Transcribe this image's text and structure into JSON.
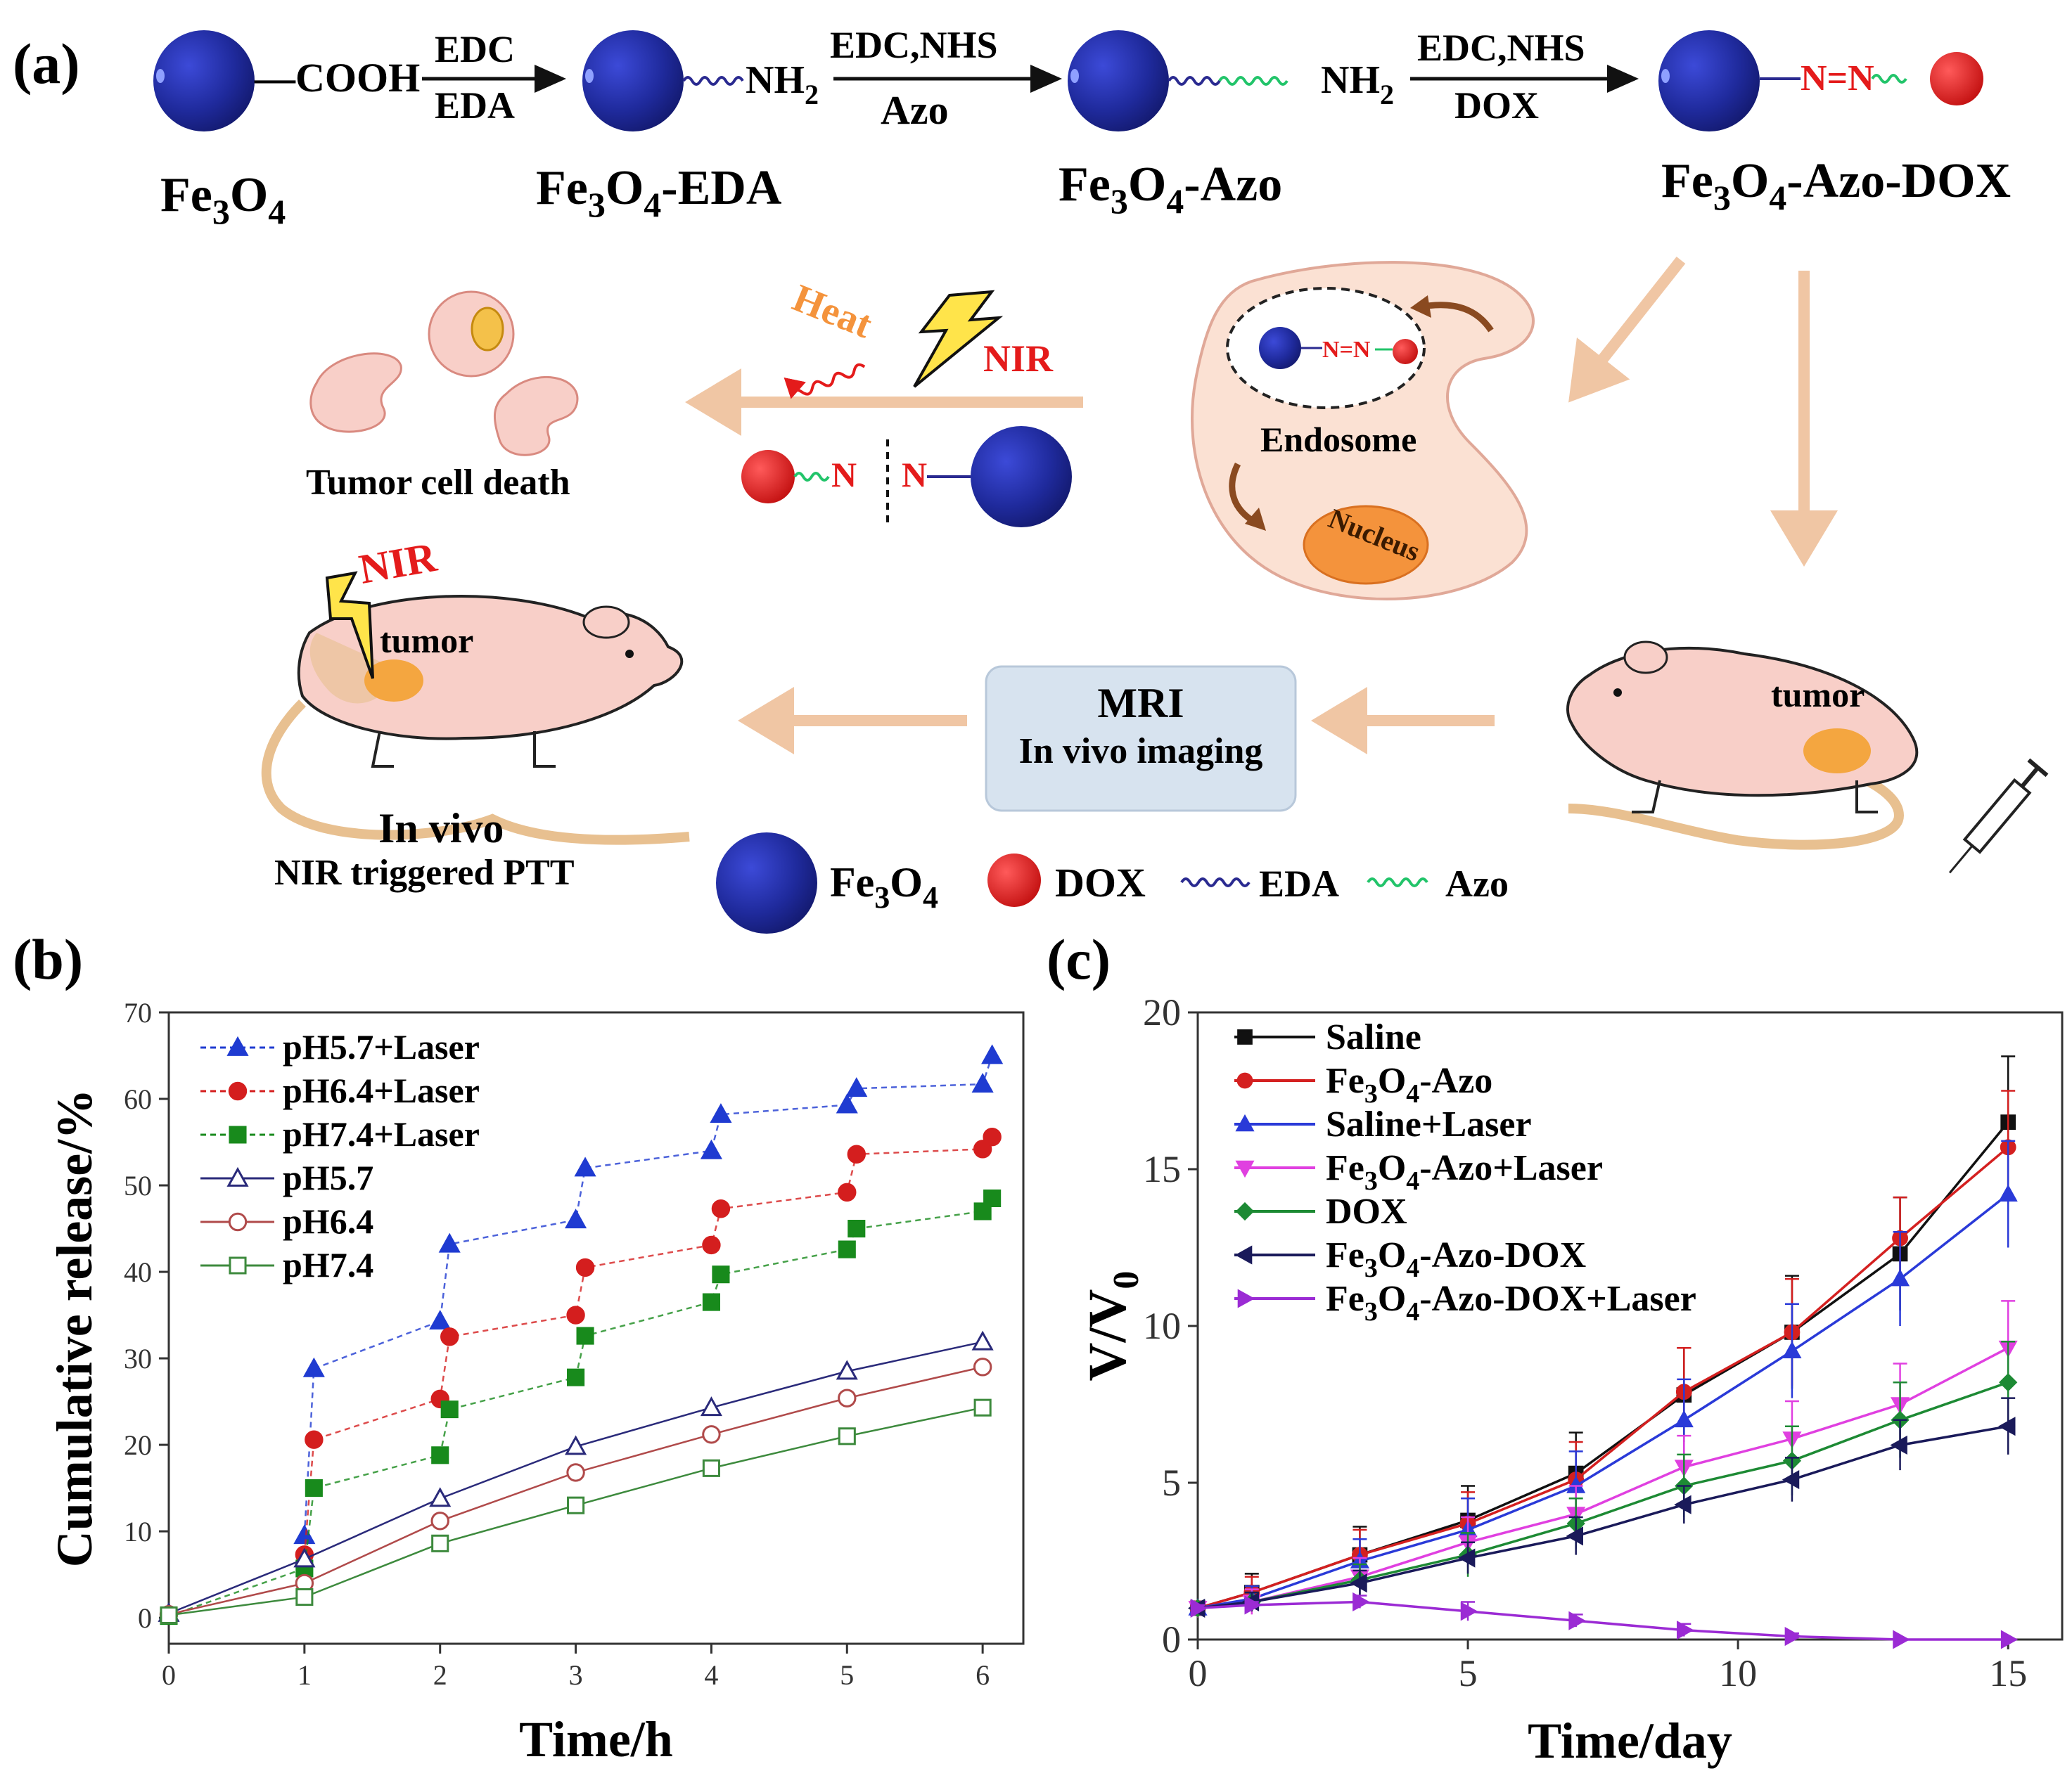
{
  "panel_labels": {
    "a": "(a)",
    "b": "(b)",
    "c": "(c)"
  },
  "colors": {
    "fe3o4": "#1f2a9c",
    "dox": "#e01414",
    "eda_wave": "#2a2a90",
    "azo_wave": "#22c46a",
    "arrow": "#f0c6a4",
    "cell": "#fbe1d3",
    "nucleus": "#f4933c",
    "mouse": "#f8cfc8",
    "tumor": "#f4a640",
    "mri_box": "#d7e3ef",
    "heat": "#f4933c",
    "nir_red": "#e41b1b"
  },
  "scheme": {
    "steps": [
      {
        "label": "Fe3O4",
        "main": "Fe",
        "sub1": "3",
        "mid": "O",
        "sub2": "4",
        "tail": "",
        "group": "—COOH"
      },
      {
        "label": "Fe3O4-EDA",
        "main": "Fe",
        "sub1": "3",
        "mid": "O",
        "sub2": "4",
        "tail": "-EDA",
        "group": "NH",
        "group_sub": "2"
      },
      {
        "label": "Fe3O4-Azo",
        "main": "Fe",
        "sub1": "3",
        "mid": "O",
        "sub2": "4",
        "tail": "-Azo",
        "group": "NH",
        "group_sub": "2"
      },
      {
        "label": "Fe3O4-Azo-DOX",
        "main": "Fe",
        "sub1": "3",
        "mid": "O",
        "sub2": "4",
        "tail": "-Azo-DOX",
        "group": "N=N"
      }
    ],
    "reactions": [
      {
        "top": "EDC",
        "bottom": "EDA"
      },
      {
        "top": "EDC,NHS",
        "bottom": "Azo"
      },
      {
        "top": "EDC,NHS",
        "bottom": "DOX"
      }
    ],
    "cell": {
      "endosome": "Endosome",
      "nucleus": "Nucleus",
      "bond": "N=N"
    },
    "heat": "Heat",
    "nir": "NIR",
    "cleaved_n_left": "N",
    "cleaved_n_right": "N",
    "tumor_death": "Tumor cell death",
    "mouse_left": {
      "nir": "NIR",
      "tumor": "tumor",
      "line1": "In vivo",
      "line2": "NIR triggered PTT"
    },
    "mouse_right": {
      "tumor": "tumor"
    },
    "mri": {
      "line1": "MRI",
      "line2": "In vivo imaging"
    },
    "legend": [
      {
        "label": "Fe3O4",
        "main": "Fe",
        "sub1": "3",
        "mid": "O",
        "sub2": "4"
      },
      {
        "label": "DOX"
      },
      {
        "label": "EDA"
      },
      {
        "label": "Azo"
      }
    ]
  },
  "chart_data": [
    {
      "type": "scatter",
      "panel": "(b)",
      "xlabel": "Time/h",
      "ylabel": "Cumulative release/%",
      "xlim": [
        0,
        6.3
      ],
      "ylim": [
        -3,
        70
      ],
      "xticks": [
        0,
        1,
        2,
        3,
        4,
        5,
        6
      ],
      "yticks": [
        0,
        10,
        20,
        30,
        40,
        50,
        60,
        70
      ],
      "legend_position": "top-left",
      "series": [
        {
          "name": "pH5.7+Laser",
          "color": "#1f3bd1",
          "marker": "triangle-filled",
          "x": [
            1.0,
            1.07,
            2.0,
            2.07,
            3.0,
            3.07,
            4.0,
            4.07,
            5.0,
            5.07,
            6.0,
            6.07
          ],
          "y": [
            9.5,
            28.8,
            34.3,
            43.2,
            46.0,
            52.0,
            54.0,
            58.2,
            59.3,
            61.2,
            61.7,
            65.0
          ]
        },
        {
          "name": "pH6.4+Laser",
          "color": "#d41e1e",
          "marker": "circle-filled",
          "x": [
            1.0,
            1.07,
            2.0,
            2.07,
            3.0,
            3.07,
            4.0,
            4.07,
            5.0,
            5.07,
            6.0,
            6.07
          ],
          "y": [
            7.3,
            20.6,
            25.3,
            32.5,
            35.0,
            40.5,
            43.1,
            47.3,
            49.2,
            53.6,
            54.2,
            55.6
          ]
        },
        {
          "name": "pH7.4+Laser",
          "color": "#188a1c",
          "marker": "square-filled",
          "x": [
            0.0,
            1.0,
            1.07,
            2.0,
            2.07,
            3.0,
            3.07,
            4.0,
            4.07,
            5.0,
            5.07,
            6.0,
            6.07
          ],
          "y": [
            0.2,
            5.7,
            15.0,
            18.8,
            24.1,
            27.8,
            32.6,
            36.5,
            39.7,
            42.6,
            45.0,
            47.0,
            48.5
          ]
        },
        {
          "name": "pH5.7",
          "color": "#2a2a7a",
          "marker": "triangle-open",
          "x": [
            0,
            1,
            2,
            3,
            4,
            5,
            6
          ],
          "y": [
            0.5,
            6.8,
            13.8,
            19.8,
            24.3,
            28.5,
            31.9
          ]
        },
        {
          "name": "pH6.4",
          "color": "#b04a4a",
          "marker": "circle-open",
          "x": [
            0,
            1,
            2,
            3,
            4,
            5,
            6
          ],
          "y": [
            0.4,
            4.0,
            11.2,
            16.8,
            21.2,
            25.4,
            29.0
          ]
        },
        {
          "name": "pH7.4",
          "color": "#3d8a3d",
          "marker": "square-open",
          "x": [
            0,
            1,
            2,
            3,
            4,
            5,
            6
          ],
          "y": [
            0.3,
            2.4,
            8.6,
            13.0,
            17.3,
            21.0,
            24.3
          ]
        }
      ]
    },
    {
      "type": "line",
      "panel": "(c)",
      "xlabel": "Time/day",
      "ylabel": "V/V",
      "ylabel_sub": "0",
      "xlim": [
        0,
        16
      ],
      "ylim": [
        0,
        20
      ],
      "xticks": [
        0,
        5,
        10,
        15
      ],
      "yticks": [
        0,
        5,
        10,
        15,
        20
      ],
      "legend_position": "top-left",
      "x": [
        0,
        1,
        3,
        5,
        7,
        9,
        11,
        13,
        15
      ],
      "series": [
        {
          "name": "Saline",
          "color": "#111111",
          "marker": "square",
          "y": [
            1.0,
            1.5,
            2.7,
            3.8,
            5.3,
            7.8,
            9.8,
            12.3,
            16.5
          ],
          "err": [
            0.1,
            0.6,
            0.9,
            1.1,
            1.3,
            1.5,
            1.8,
            1.8,
            2.1
          ]
        },
        {
          "name": "Fe3O4-Azo",
          "main": "Fe",
          "sub1": "3",
          "mid": "O",
          "sub2": "4",
          "tail": "-Azo",
          "color": "#d42020",
          "marker": "circle",
          "y": [
            1.0,
            1.5,
            2.7,
            3.7,
            5.1,
            7.9,
            9.8,
            12.8,
            15.7
          ],
          "err": [
            0.1,
            0.5,
            0.8,
            1.0,
            1.2,
            1.4,
            1.7,
            1.3,
            1.8
          ]
        },
        {
          "name": "Saline+Laser",
          "color": "#2a3ad8",
          "marker": "triangle-up",
          "y": [
            1.0,
            1.3,
            2.5,
            3.5,
            4.9,
            7.0,
            9.2,
            11.5,
            14.2
          ],
          "err": [
            0.1,
            0.4,
            0.7,
            1.0,
            1.1,
            1.3,
            1.5,
            1.5,
            1.7
          ]
        },
        {
          "name": "Fe3O4-Azo+Laser",
          "main": "Fe",
          "sub1": "3",
          "mid": "O",
          "sub2": "4",
          "tail": "-Azo+Laser",
          "color": "#e040e0",
          "marker": "triangle-down",
          "y": [
            1.0,
            1.2,
            2.0,
            3.1,
            4.0,
            5.5,
            6.4,
            7.5,
            9.3
          ],
          "err": [
            0.1,
            0.4,
            0.6,
            0.8,
            0.9,
            1.0,
            1.2,
            1.3,
            1.5
          ]
        },
        {
          "name": "DOX",
          "color": "#1d8a34",
          "marker": "diamond",
          "y": [
            1.0,
            1.2,
            1.9,
            2.7,
            3.7,
            4.9,
            5.7,
            7.0,
            8.2
          ],
          "err": [
            0.1,
            0.3,
            0.5,
            0.7,
            0.8,
            1.0,
            1.1,
            1.2,
            1.3
          ]
        },
        {
          "name": "Fe3O4-Azo-DOX",
          "main": "Fe",
          "sub1": "3",
          "mid": "O",
          "sub2": "4",
          "tail": "-Azo-DOX",
          "color": "#1a1a5a",
          "marker": "triangle-left",
          "y": [
            1.0,
            1.2,
            1.8,
            2.6,
            3.3,
            4.3,
            5.1,
            6.2,
            6.8
          ],
          "err": [
            0.1,
            0.3,
            0.4,
            0.5,
            0.6,
            0.6,
            0.7,
            0.8,
            0.9
          ]
        },
        {
          "name": "Fe3O4-Azo-DOX+Laser",
          "main": "Fe",
          "sub1": "3",
          "mid": "O",
          "sub2": "4",
          "tail": "-Azo-DOX+Laser",
          "color": "#9b2bd4",
          "marker": "triangle-right",
          "y": [
            1.0,
            1.1,
            1.2,
            0.9,
            0.6,
            0.3,
            0.1,
            0.0,
            0.0
          ],
          "err": [
            0.1,
            0.1,
            0.2,
            0.3,
            0.2,
            0.2,
            0.1,
            0.0,
            0.0
          ]
        }
      ]
    }
  ]
}
